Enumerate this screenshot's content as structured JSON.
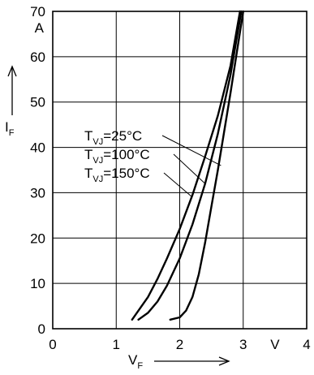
{
  "chart_data": {
    "type": "line",
    "x_axis": {
      "symbol": "V",
      "subscript": "F",
      "unit": "V",
      "range": [
        0,
        4
      ],
      "ticks": [
        0,
        1,
        2,
        3,
        4
      ],
      "unit_replaces_tick": 3.5
    },
    "y_axis": {
      "symbol": "I",
      "subscript": "F",
      "unit": "A",
      "range": [
        0,
        70
      ],
      "ticks": [
        0,
        10,
        20,
        30,
        40,
        50,
        60,
        70
      ],
      "unit_replaces_tick": 65
    },
    "grid": true,
    "series": [
      {
        "name": "T_VJ=25°C",
        "label_main": "T",
        "label_sub": "VJ",
        "label_rest": "=25°C",
        "label_anchor": [
          2.65,
          36
        ],
        "x": [
          1.25,
          1.35,
          1.5,
          1.65,
          1.8,
          2.0,
          2.2,
          2.4,
          2.6,
          2.8,
          2.95
        ],
        "y": [
          2,
          4,
          7,
          11,
          15.5,
          22,
          29.5,
          38,
          47,
          58,
          70
        ]
      },
      {
        "name": "T_VJ=100°C",
        "label_main": "T",
        "label_sub": "VJ",
        "label_rest": "=100°C",
        "label_anchor": [
          2.4,
          32
        ],
        "x": [
          1.35,
          1.5,
          1.65,
          1.8,
          2.0,
          2.2,
          2.4,
          2.6,
          2.8,
          2.97
        ],
        "y": [
          2,
          3.5,
          6,
          9.5,
          15.5,
          23,
          32,
          43,
          56,
          70
        ]
      },
      {
        "name": "T_VJ=150°C",
        "label_main": "T",
        "label_sub": "VJ",
        "label_rest": "=150°C",
        "label_anchor": [
          2.2,
          29
        ],
        "x": [
          1.85,
          2.0,
          2.1,
          2.2,
          2.3,
          2.4,
          2.5,
          2.6,
          2.7,
          2.8,
          2.9,
          3.0
        ],
        "y": [
          2,
          2.5,
          4,
          7,
          12,
          19,
          27,
          35,
          43.5,
          52,
          61,
          70
        ]
      }
    ]
  }
}
